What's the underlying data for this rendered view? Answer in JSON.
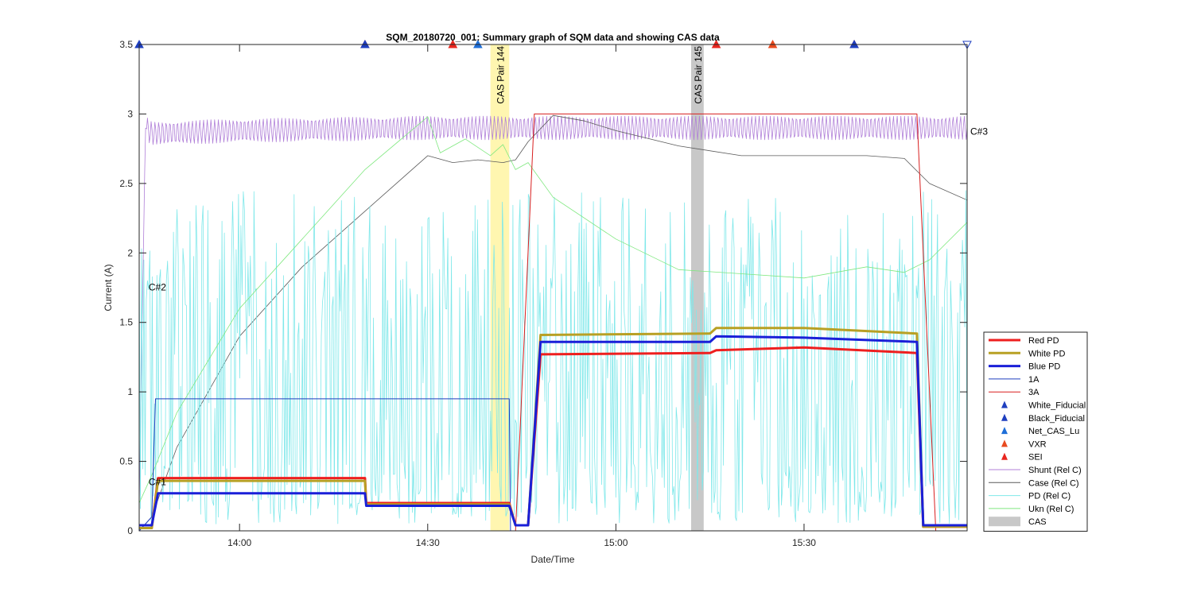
{
  "chart_data": {
    "type": "line",
    "title": "SQM_20180720_001: Summary graph of SQM data and showing CAS data",
    "xlabel": "Date/Time",
    "ylabel": "Current (A)",
    "xlim": [
      "13:44",
      "15:56"
    ],
    "ylim": [
      0,
      3.5
    ],
    "xticks": [
      {
        "t": "14:00",
        "label": "14:00"
      },
      {
        "t": "14:30",
        "label": "14:30"
      },
      {
        "t": "15:00",
        "label": "15:00"
      },
      {
        "t": "15:30",
        "label": "15:30"
      }
    ],
    "yticks": [
      {
        "v": 0,
        "label": "0"
      },
      {
        "v": 0.5,
        "label": "0.5"
      },
      {
        "v": 1,
        "label": "1"
      },
      {
        "v": 1.5,
        "label": "1.5"
      },
      {
        "v": 2,
        "label": "2"
      },
      {
        "v": 2.5,
        "label": "2.5"
      },
      {
        "v": 3,
        "label": "3"
      },
      {
        "v": 3.5,
        "label": "3.5"
      }
    ],
    "grid": false,
    "legend_position": "right-bottom",
    "cas_bands": [
      {
        "label": "CAS Pair 144",
        "start": "14:40",
        "end": "14:43",
        "color": "#fff6b0"
      },
      {
        "label": "CAS Pair 145",
        "start": "15:12",
        "end": "15:14",
        "color": "#c8c8c8"
      }
    ],
    "annotations": [
      {
        "text": "C#1",
        "t": "13:45",
        "v": 0.33
      },
      {
        "text": "C#2",
        "t": "13:45",
        "v": 1.73
      },
      {
        "text": "C#3",
        "t": "15:56",
        "v": 2.85
      }
    ],
    "markers": [
      {
        "series": "White_Fiducial",
        "t": "13:44",
        "v": 3.5,
        "shape": "up",
        "color": "#1f3fbf"
      },
      {
        "series": "SEI",
        "t": "14:20",
        "v": 3.5,
        "shape": "up",
        "color": "#e8261f"
      },
      {
        "series": "Black_Fiducial",
        "t": "14:20",
        "v": 3.5,
        "shape": "up",
        "color": "#1f3fbf"
      },
      {
        "series": "VXR",
        "t": "14:34",
        "v": 3.5,
        "shape": "up",
        "color": "#e84a1f"
      },
      {
        "series": "SEI",
        "t": "14:34",
        "v": 3.5,
        "shape": "up",
        "color": "#e8261f"
      },
      {
        "series": "Net_CAS_Lu",
        "t": "14:38",
        "v": 3.5,
        "shape": "up",
        "color": "#1f6fd8"
      },
      {
        "series": "SEI",
        "t": "15:16",
        "v": 3.5,
        "shape": "up",
        "color": "#e8261f"
      },
      {
        "series": "VXR",
        "t": "15:25",
        "v": 3.5,
        "shape": "up",
        "color": "#e84a1f"
      },
      {
        "series": "SEI",
        "t": "15:38",
        "v": 3.5,
        "shape": "up",
        "color": "#e8261f"
      },
      {
        "series": "Black_Fiducial",
        "t": "15:38",
        "v": 3.5,
        "shape": "up",
        "color": "#1f3fbf"
      },
      {
        "series": "White_Fiducial",
        "t": "15:56",
        "v": 3.5,
        "shape": "down",
        "color": "#1f3fbf"
      }
    ],
    "series": [
      {
        "name": "Shunt (Rel C)",
        "color": "#b07fd8",
        "width": 0.8,
        "noise": "osc",
        "x": [
          "13:44",
          "13:45",
          "13:46",
          "14:00",
          "14:30",
          "14:42",
          "15:00",
          "15:30",
          "15:56"
        ],
        "y": [
          0.2,
          2.9,
          2.86,
          2.88,
          2.9,
          2.9,
          2.9,
          2.9,
          2.9
        ]
      },
      {
        "name": "Case (Rel C)",
        "color": "#5a5a5a",
        "width": 0.8,
        "x": [
          "13:44",
          "13:46",
          "13:50",
          "14:00",
          "14:10",
          "14:20",
          "14:30",
          "14:34",
          "14:38",
          "14:42",
          "14:44",
          "14:46",
          "14:50",
          "14:55",
          "15:00",
          "15:10",
          "15:20",
          "15:30",
          "15:40",
          "15:46",
          "15:50",
          "15:56"
        ],
        "y": [
          0.0,
          0.1,
          0.6,
          1.4,
          1.9,
          2.3,
          2.7,
          2.65,
          2.67,
          2.65,
          2.67,
          2.8,
          2.99,
          2.95,
          2.88,
          2.77,
          2.7,
          2.7,
          2.7,
          2.68,
          2.5,
          2.38
        ]
      },
      {
        "name": "PD (Rel C)",
        "color": "#7fe8ea",
        "width": 0.8,
        "noise": "spiky",
        "x": [
          "13:44",
          "13:45",
          "13:50",
          "14:00",
          "14:20",
          "14:40",
          "14:44",
          "14:46",
          "15:00",
          "15:10",
          "15:20",
          "15:30",
          "15:40",
          "15:47",
          "15:50",
          "15:56"
        ],
        "y": [
          1.0,
          1.2,
          1.5,
          1.2,
          1.3,
          1.3,
          1.3,
          1.2,
          1.1,
          1.2,
          1.4,
          1.3,
          1.2,
          1.1,
          1.4,
          1.9
        ]
      },
      {
        "name": "Ukn (Rel C)",
        "color": "#7fe87f",
        "width": 0.8,
        "x": [
          "13:44",
          "13:46",
          "13:50",
          "14:00",
          "14:10",
          "14:20",
          "14:30",
          "14:32",
          "14:36",
          "14:40",
          "14:42",
          "14:44",
          "14:46",
          "14:50",
          "15:00",
          "15:10",
          "15:20",
          "15:30",
          "15:40",
          "15:46",
          "15:50",
          "15:56"
        ],
        "y": [
          0.2,
          0.4,
          0.85,
          1.6,
          2.1,
          2.6,
          2.98,
          2.72,
          2.82,
          2.7,
          2.78,
          2.6,
          2.65,
          2.4,
          2.1,
          1.88,
          1.85,
          1.82,
          1.9,
          1.86,
          1.95,
          2.22
        ]
      },
      {
        "name": "1A",
        "color": "#1f3fbf",
        "width": 1.0,
        "x": [
          "13:44",
          "13:46",
          "13:46.6",
          "14:43",
          "14:43.2",
          "15:56"
        ],
        "y": [
          0.0,
          0.1,
          0.95,
          0.95,
          0.0,
          0.0
        ]
      },
      {
        "name": "3A",
        "color": "#d81f1f",
        "width": 1.0,
        "x": [
          "13:44",
          "14:44",
          "14:47",
          "15:48",
          "15:51",
          "15:56"
        ],
        "y": [
          0.0,
          0.0,
          3.0,
          3.0,
          0.0,
          0.0
        ]
      },
      {
        "name": "Red PD",
        "color": "#ee1f1f",
        "width": 3.0,
        "x": [
          "13:44",
          "13:46",
          "13:47",
          "14:20",
          "14:20.2",
          "14:43",
          "14:44",
          "14:46",
          "14:48",
          "15:15",
          "15:16",
          "15:30",
          "15:48",
          "15:49",
          "15:56"
        ],
        "y": [
          0.02,
          0.02,
          0.38,
          0.38,
          0.2,
          0.2,
          0.04,
          0.04,
          1.27,
          1.28,
          1.3,
          1.32,
          1.28,
          0.03,
          0.03
        ]
      },
      {
        "name": "White PD",
        "color": "#b8a024",
        "width": 3.0,
        "x": [
          "13:44",
          "13:46",
          "13:47",
          "14:20",
          "14:20.2",
          "14:43",
          "14:44",
          "14:46",
          "14:48",
          "15:15",
          "15:16",
          "15:30",
          "15:48",
          "15:49",
          "15:56"
        ],
        "y": [
          0.02,
          0.02,
          0.36,
          0.36,
          0.19,
          0.19,
          0.04,
          0.04,
          1.41,
          1.42,
          1.46,
          1.46,
          1.42,
          0.03,
          0.03
        ]
      },
      {
        "name": "Blue PD",
        "color": "#1a1fd8",
        "width": 3.0,
        "x": [
          "13:44",
          "13:46",
          "13:47",
          "14:20",
          "14:20.2",
          "14:43",
          "14:44",
          "14:46",
          "14:48",
          "15:15",
          "15:16",
          "15:30",
          "15:48",
          "15:49",
          "15:56"
        ],
        "y": [
          0.04,
          0.04,
          0.27,
          0.27,
          0.18,
          0.18,
          0.04,
          0.04,
          1.36,
          1.36,
          1.4,
          1.39,
          1.36,
          0.04,
          0.04
        ]
      }
    ],
    "legend": [
      {
        "label": "Red PD",
        "kind": "line",
        "color": "#ee1f1f",
        "width": 3
      },
      {
        "label": "White PD",
        "kind": "line",
        "color": "#b8a024",
        "width": 3
      },
      {
        "label": "Blue PD",
        "kind": "line",
        "color": "#1a1fd8",
        "width": 3
      },
      {
        "label": "1A",
        "kind": "line",
        "color": "#1f3fbf",
        "width": 1
      },
      {
        "label": "3A",
        "kind": "line",
        "color": "#d81f1f",
        "width": 1
      },
      {
        "label": "White_Fiducial",
        "kind": "marker",
        "color": "#1f3fbf"
      },
      {
        "label": "Black_Fiducial",
        "kind": "marker",
        "color": "#1f3fbf"
      },
      {
        "label": "Net_CAS_Lu",
        "kind": "marker",
        "color": "#1f6fd8"
      },
      {
        "label": "VXR",
        "kind": "marker",
        "color": "#e84a1f"
      },
      {
        "label": "SEI",
        "kind": "marker",
        "color": "#e8261f"
      },
      {
        "label": "Shunt (Rel C)",
        "kind": "line",
        "color": "#b07fd8",
        "width": 1
      },
      {
        "label": "Case (Rel C)",
        "kind": "line",
        "color": "#5a5a5a",
        "width": 1
      },
      {
        "label": "PD (Rel C)",
        "kind": "line",
        "color": "#7fe8ea",
        "width": 1
      },
      {
        "label": "Ukn (Rel C)",
        "kind": "line",
        "color": "#7fe87f",
        "width": 1
      },
      {
        "label": "CAS",
        "kind": "patch",
        "color": "#c8c8c8"
      }
    ]
  }
}
